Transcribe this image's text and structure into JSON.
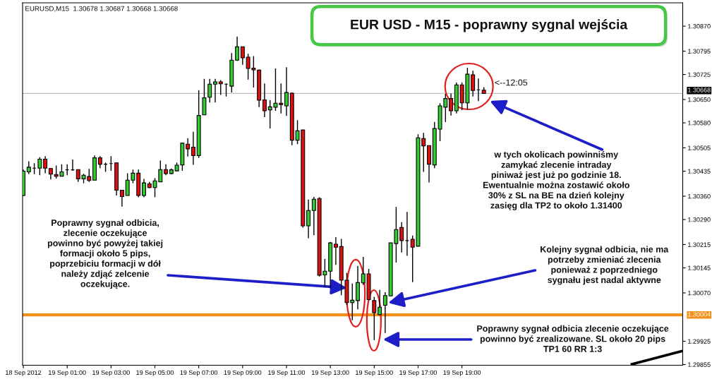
{
  "chart_data": {
    "type": "candlestick",
    "title": "EUR USD - M15 - poprawny sygnal wejścia",
    "x": [
      "2012-09-18T23:00",
      "2012-09-18T23:15",
      "2012-09-18T23:30",
      "2012-09-18T23:45",
      "2012-09-19T00:00",
      "2012-09-19T00:15",
      "2012-09-19T00:30",
      "2012-09-19T00:45",
      "2012-09-19T01:00",
      "2012-09-19T01:15",
      "2012-09-19T01:30",
      "2012-09-19T01:45",
      "2012-09-19T02:00",
      "2012-09-19T02:15",
      "2012-09-19T02:30",
      "2012-09-19T02:45",
      "2012-09-19T03:00",
      "2012-09-19T03:15",
      "2012-09-19T03:30",
      "2012-09-19T03:45",
      "2012-09-19T04:00",
      "2012-09-19T04:15",
      "2012-09-19T04:30",
      "2012-09-19T04:45",
      "2012-09-19T05:00",
      "2012-09-19T05:15",
      "2012-09-19T05:30",
      "2012-09-19T05:45",
      "2012-09-19T06:00",
      "2012-09-19T06:15",
      "2012-09-19T06:30",
      "2012-09-19T06:45",
      "2012-09-19T07:00",
      "2012-09-19T07:15",
      "2012-09-19T07:30",
      "2012-09-19T07:45",
      "2012-09-19T08:00",
      "2012-09-19T08:15",
      "2012-09-19T08:30",
      "2012-09-19T08:45",
      "2012-09-19T09:00",
      "2012-09-19T09:15",
      "2012-09-19T09:30",
      "2012-09-19T09:45",
      "2012-09-19T10:00",
      "2012-09-19T10:15",
      "2012-09-19T10:30",
      "2012-09-19T10:45",
      "2012-09-19T11:00",
      "2012-09-19T11:15",
      "2012-09-19T11:30",
      "2012-09-19T11:45",
      "2012-09-19T12:00",
      "2012-09-19T12:15",
      "2012-09-19T12:30",
      "2012-09-19T12:45",
      "2012-09-19T13:00",
      "2012-09-19T13:15",
      "2012-09-19T13:30",
      "2012-09-19T13:45",
      "2012-09-19T14:00",
      "2012-09-19T14:15",
      "2012-09-19T14:30",
      "2012-09-19T14:45",
      "2012-09-19T15:00",
      "2012-09-19T15:15",
      "2012-09-19T15:30",
      "2012-09-19T15:45",
      "2012-09-19T16:00",
      "2012-09-19T16:15",
      "2012-09-19T16:30",
      "2012-09-19T16:45",
      "2012-09-19T17:00",
      "2012-09-19T17:15",
      "2012-09-19T17:30",
      "2012-09-19T17:45",
      "2012-09-19T18:00",
      "2012-09-19T18:15",
      "2012-09-19T18:30",
      "2012-09-19T18:45",
      "2012-09-19T19:00",
      "2012-09-19T19:15",
      "2012-09-19T19:30",
      "2012-09-19T19:45",
      "2012-09-19T20:00"
    ],
    "ohlc": [
      [
        1.30362,
        1.3044,
        1.3036,
        1.30435
      ],
      [
        1.30433,
        1.30465,
        1.30426,
        1.30447
      ],
      [
        1.30444,
        1.30459,
        1.30426,
        1.30444
      ],
      [
        1.30444,
        1.30477,
        1.30423,
        1.30471
      ],
      [
        1.30471,
        1.3048,
        1.30429,
        1.30444
      ],
      [
        1.30443,
        1.30444,
        1.3041,
        1.30426
      ],
      [
        1.30425,
        1.30452,
        1.30413,
        1.3042
      ],
      [
        1.3042,
        1.30456,
        1.30419,
        1.30433
      ],
      [
        1.30439,
        1.30456,
        1.30423,
        1.30439
      ],
      [
        1.30439,
        1.3047,
        1.30436,
        1.30439
      ],
      [
        1.3044,
        1.3044,
        1.30403,
        1.30412
      ],
      [
        1.30412,
        1.30427,
        1.30399,
        1.30423
      ],
      [
        1.30419,
        1.30442,
        1.30403,
        1.30407
      ],
      [
        1.30408,
        1.30482,
        1.30408,
        1.30475
      ],
      [
        1.30475,
        1.3048,
        1.30444,
        1.30456
      ],
      [
        1.30456,
        1.30461,
        1.30433,
        1.30456
      ],
      [
        1.30458,
        1.3048,
        1.30436,
        1.30458
      ],
      [
        1.3046,
        1.3046,
        1.30362,
        1.30378
      ],
      [
        1.30378,
        1.30378,
        1.30329,
        1.30359
      ],
      [
        1.30362,
        1.30429,
        1.30362,
        1.30408
      ],
      [
        1.30408,
        1.3044,
        1.30399,
        1.30429
      ],
      [
        1.30429,
        1.3044,
        1.30357,
        1.30362
      ],
      [
        1.30362,
        1.30412,
        1.30357,
        1.304
      ],
      [
        1.30397,
        1.30403,
        1.30384,
        1.30386
      ],
      [
        1.30386,
        1.30414,
        1.30357,
        1.30406
      ],
      [
        1.30403,
        1.30467,
        1.30403,
        1.3044
      ],
      [
        1.3044,
        1.30456,
        1.30423,
        1.30428
      ],
      [
        1.30428,
        1.30443,
        1.30426,
        1.30439
      ],
      [
        1.30436,
        1.30461,
        1.30435,
        1.30453
      ],
      [
        1.30454,
        1.30521,
        1.30436,
        1.30519
      ],
      [
        1.30516,
        1.30534,
        1.30479,
        1.30502
      ],
      [
        1.30507,
        1.30553,
        1.30454,
        1.30482
      ],
      [
        1.30482,
        1.30678,
        1.30475,
        1.30602
      ],
      [
        1.30604,
        1.30712,
        1.30604,
        1.30655
      ],
      [
        1.30657,
        1.30712,
        1.30641,
        1.30696
      ],
      [
        1.30696,
        1.30712,
        1.30641,
        1.30703
      ],
      [
        1.30703,
        1.30708,
        1.30664,
        1.30697
      ],
      [
        1.30696,
        1.30698,
        1.30659,
        1.30696
      ],
      [
        1.3069,
        1.30789,
        1.30671,
        1.30768
      ],
      [
        1.30768,
        1.30839,
        1.30766,
        1.30808
      ],
      [
        1.30808,
        1.30808,
        1.30754,
        1.30775
      ],
      [
        1.30777,
        1.30787,
        1.3071,
        1.30743
      ],
      [
        1.30744,
        1.3078,
        1.30686,
        1.30739
      ],
      [
        1.30738,
        1.3074,
        1.30627,
        1.30648
      ],
      [
        1.30649,
        1.30698,
        1.30597,
        1.30616
      ],
      [
        1.30619,
        1.30648,
        1.30563,
        1.30628
      ],
      [
        1.30627,
        1.30743,
        1.30616,
        1.30639
      ],
      [
        1.30639,
        1.30698,
        1.30608,
        1.30635
      ],
      [
        1.30631,
        1.30747,
        1.30601,
        1.30671
      ],
      [
        1.30669,
        1.30671,
        1.30513,
        1.30528
      ],
      [
        1.30528,
        1.30588,
        1.30516,
        1.30556
      ],
      [
        1.30559,
        1.30559,
        1.30266,
        1.30271
      ],
      [
        1.30271,
        1.3035,
        1.30234,
        1.30317
      ],
      [
        1.30317,
        1.30358,
        1.30243,
        1.30351
      ],
      [
        1.30353,
        1.30357,
        1.30119,
        1.30123
      ],
      [
        1.30124,
        1.30172,
        1.30087,
        1.30135
      ],
      [
        1.30135,
        1.30223,
        1.30084,
        1.3022
      ],
      [
        1.30216,
        1.30237,
        1.30154,
        1.30207
      ],
      [
        1.30209,
        1.30232,
        1.30063,
        1.30108
      ],
      [
        1.30108,
        1.3013,
        1.30034,
        1.30041
      ],
      [
        1.30041,
        1.30098,
        1.29988,
        1.30048
      ],
      [
        1.30047,
        1.30151,
        1.30021,
        1.30101
      ],
      [
        1.301,
        1.30178,
        1.30094,
        1.30127
      ],
      [
        1.30127,
        1.30142,
        1.30048,
        1.3005
      ],
      [
        1.30047,
        1.30058,
        1.29928,
        1.30011
      ],
      [
        1.30005,
        1.30079,
        1.30003,
        1.30027
      ],
      [
        1.30033,
        1.30072,
        1.2995,
        1.30062
      ],
      [
        1.30061,
        1.3022,
        1.3006,
        1.3022
      ],
      [
        1.30218,
        1.30328,
        1.30161,
        1.3026
      ],
      [
        1.30266,
        1.30282,
        1.30191,
        1.30227
      ],
      [
        1.30227,
        1.30313,
        1.30181,
        1.30227
      ],
      [
        1.30231,
        1.30242,
        1.30102,
        1.30207
      ],
      [
        1.3021,
        1.30546,
        1.3021,
        1.30535
      ],
      [
        1.30533,
        1.3055,
        1.30433,
        1.30511
      ],
      [
        1.30512,
        1.30512,
        1.30401,
        1.30456
      ],
      [
        1.30454,
        1.30583,
        1.30444,
        1.30563
      ],
      [
        1.30561,
        1.30639,
        1.30525,
        1.30631
      ],
      [
        1.30627,
        1.30667,
        1.30582,
        1.30653
      ],
      [
        1.30653,
        1.30668,
        1.30602,
        1.30616
      ],
      [
        1.30616,
        1.30701,
        1.30608,
        1.30694
      ],
      [
        1.30694,
        1.30701,
        1.30618,
        1.3064
      ],
      [
        1.3064,
        1.30745,
        1.3062,
        1.30726
      ],
      [
        1.30724,
        1.30736,
        1.30659,
        1.30677
      ],
      [
        1.30679,
        1.30713,
        1.30645,
        1.30679
      ],
      [
        1.30678,
        1.30687,
        1.30668,
        1.30668
      ]
    ],
    "colors": [
      "#33cc33",
      "#33cc33",
      "#000000",
      "#33cc33",
      "#dd1111",
      "#dd1111",
      "#dd1111",
      "#33cc33",
      "#000000",
      "#000000",
      "#dd1111",
      "#33cc33",
      "#dd1111",
      "#33cc33",
      "#dd1111",
      "#000000",
      "#000000",
      "#dd1111",
      "#dd1111",
      "#33cc33",
      "#33cc33",
      "#dd1111",
      "#33cc33",
      "#dd1111",
      "#33cc33",
      "#33cc33",
      "#dd1111",
      "#33cc33",
      "#33cc33",
      "#33cc33",
      "#dd1111",
      "#dd1111",
      "#33cc33",
      "#33cc33",
      "#33cc33",
      "#33cc33",
      "#dd1111",
      "#000000",
      "#33cc33",
      "#33cc33",
      "#dd1111",
      "#dd1111",
      "#dd1111",
      "#dd1111",
      "#dd1111",
      "#33cc33",
      "#33cc33",
      "#dd1111",
      "#33cc33",
      "#dd1111",
      "#33cc33",
      "#dd1111",
      "#33cc33",
      "#33cc33",
      "#dd1111",
      "#33cc33",
      "#33cc33",
      "#dd1111",
      "#dd1111",
      "#dd1111",
      "#33cc33",
      "#33cc33",
      "#33cc33",
      "#dd1111",
      "#dd1111",
      "#33cc33",
      "#33cc33",
      "#33cc33",
      "#33cc33",
      "#dd1111",
      "#000000",
      "#dd1111",
      "#33cc33",
      "#dd1111",
      "#dd1111",
      "#33cc33",
      "#33cc33",
      "#33cc33",
      "#dd1111",
      "#33cc33",
      "#dd1111",
      "#33cc33",
      "#dd1111",
      "#000000",
      "#dd1111"
    ],
    "series": [
      {
        "type": "line",
        "x": [
          "2012-09-20T02:45",
          "2012-09-20T05:00"
        ],
        "values": [
          1.29856,
          1.29895
        ],
        "color": "#000000"
      }
    ],
    "xlim": [
      "2012-09-18T22:58",
      "2012-09-20T05:04"
    ],
    "ylim": [
      1.29853,
      1.3094
    ],
    "xticks": [
      {
        "value": "2012-09-18T23:00",
        "label": "18 Sep 2012"
      },
      {
        "value": "2012-09-19T01:00",
        "label": "19 Sep 01:00"
      },
      {
        "value": "2012-09-19T03:00",
        "label": "19 Sep 03:00"
      },
      {
        "value": "2012-09-19T05:00",
        "label": "19 Sep 05:00"
      },
      {
        "value": "2012-09-19T07:00",
        "label": "19 Sep 07:00"
      },
      {
        "value": "2012-09-19T09:00",
        "label": "19 Sep 09:00"
      },
      {
        "value": "2012-09-19T11:00",
        "label": "19 Sep 11:00"
      },
      {
        "value": "2012-09-19T13:00",
        "label": "19 Sep 13:00"
      },
      {
        "value": "2012-09-19T15:00",
        "label": "19 Sep 15:00"
      },
      {
        "value": "2012-09-19T17:00",
        "label": "19 Sep 17:00"
      },
      {
        "value": "2012-09-19T19:00",
        "label": "19 Sep 19:00"
      }
    ],
    "yticks": [
      {
        "value": 1.3087,
        "label": "1.30870"
      },
      {
        "value": 1.30795,
        "label": "1.30795"
      },
      {
        "value": 1.30725,
        "label": "1.30725"
      },
      {
        "value": 1.3065,
        "label": "1.30650"
      },
      {
        "value": 1.3058,
        "label": "1.30580"
      },
      {
        "value": 1.30505,
        "label": "1.30505"
      },
      {
        "value": 1.30435,
        "label": "1.30435"
      },
      {
        "value": 1.3036,
        "label": "1.30360"
      },
      {
        "value": 1.3029,
        "label": "1.30290"
      },
      {
        "value": 1.30215,
        "label": "1.30215"
      },
      {
        "value": 1.30145,
        "label": "1.30145"
      },
      {
        "value": 1.3007,
        "label": "1.30070"
      },
      {
        "value": 1.29925,
        "label": "1.29925"
      },
      {
        "value": 1.29855,
        "label": "1.29855"
      }
    ],
    "ref_lines": [
      {
        "axis": "y",
        "value": 1.30004,
        "label": "1.30004",
        "color": "#f39019"
      },
      {
        "axis": "y",
        "value": 1.30668,
        "label": "1.30668",
        "color": "#c0c0c0"
      }
    ],
    "annotations": [
      "EURUSD,M15  1.30678 1.30687 1.30668 1.30668",
      "<--12:05",
      "w tych okolicach powinniśmy\nzamykać zlecenie intraday\npiniważ jest już po godzinie 18.\nEwentualnie można zostawić około\n30% z SL na BE na dzień kolejny\nzasięg dla TP2 to około 1.31400",
      {
        "text": "Poprawny sygnał odbicia,\nzlecenie oczekujące\npowinno być powyżej takiej\nformacji około 5 pips,\npoprzebiciu formacji w dół\nnależy zdjąć zelcenie\noczekujące.",
        "x": "2012-09-19T13:45",
        "y": 1.30085
      },
      {
        "text": "Kolejny sygnał odbicia, nie ma\npotrzeby zmieniać zlecenia\nponieważ z poprzedniego\nsygnału jest nadal aktywne",
        "x": "2012-09-19T15:38",
        "y": 1.3004
      },
      "Poprawny sygnał odbicia zlecenie oczekujące\npowinno być zrealizowane. SL około 20 pips\nTP1 60 RR 1:3"
    ]
  }
}
